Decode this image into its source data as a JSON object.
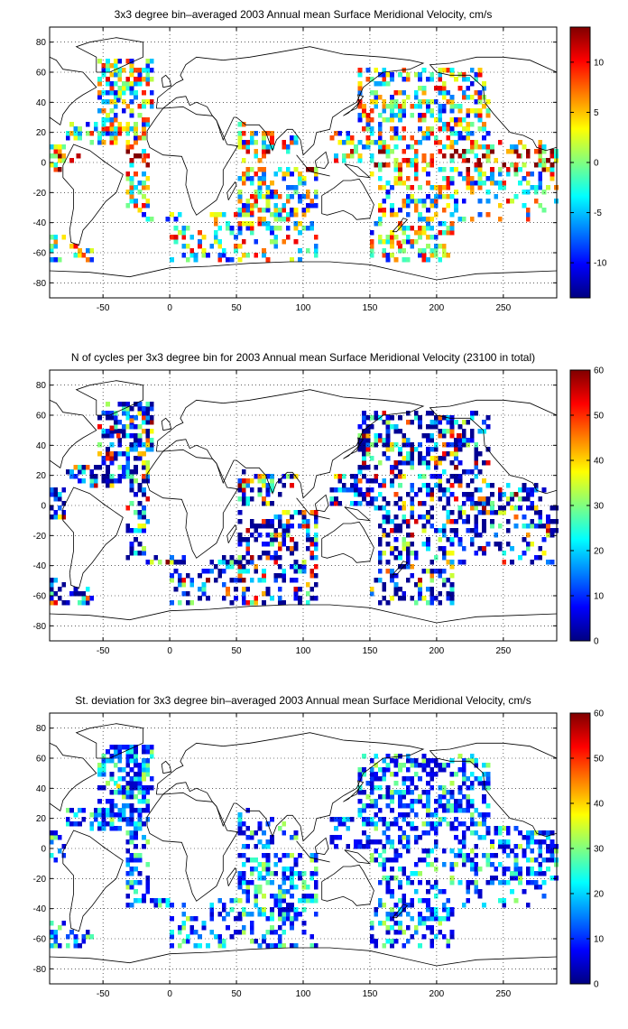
{
  "chart_data": [
    {
      "type": "heatmap",
      "title": "3x3 degree bin–averaged 2003 Annual mean Surface Meridional Velocity, cm/s",
      "xlim": [
        -90,
        290
      ],
      "ylim": [
        -90,
        90
      ],
      "x_ticks": [
        "-50",
        "0",
        "50",
        "100",
        "150",
        "200",
        "250"
      ],
      "y_ticks": [
        "80",
        "60",
        "40",
        "20",
        "0",
        "-20",
        "-40",
        "-60",
        "-80"
      ],
      "colorbar": {
        "min": -13.5,
        "max": 13.5,
        "ticks": [
          "10",
          "5",
          "0",
          "-5",
          "-10"
        ]
      },
      "grid": true,
      "cell_size_deg": 3,
      "seed": 11,
      "mode": "signed",
      "cells": [
        {
          "lon": -75,
          "lat": 0,
          "value": 11
        },
        {
          "lon": -70,
          "lat": 3,
          "value": 12
        },
        {
          "lon": -30,
          "lat": 0,
          "value": 12
        },
        {
          "lon": -20,
          "lat": 3,
          "value": 9
        },
        {
          "lon": 120,
          "lat": 15,
          "value": 8
        },
        {
          "lon": 230,
          "lat": 0,
          "value": 13
        },
        {
          "lon": 260,
          "lat": 3,
          "value": 12
        },
        {
          "lon": -40,
          "lat": 40,
          "value": -9
        },
        {
          "lon": 170,
          "lat": -55,
          "value": 9
        },
        {
          "lon": 60,
          "lat": -35,
          "value": 10
        }
      ]
    },
    {
      "type": "heatmap",
      "title": "N of cycles per 3x3 degree bin for 2003 Annual mean Surface Meridional Velocity (23100 in total)",
      "xlim": [
        -90,
        290
      ],
      "ylim": [
        -90,
        90
      ],
      "x_ticks": [
        "-50",
        "0",
        "50",
        "100",
        "150",
        "200",
        "250"
      ],
      "y_ticks": [
        "80",
        "60",
        "40",
        "20",
        "0",
        "-20",
        "-40",
        "-60",
        "-80"
      ],
      "colorbar": {
        "min": 0,
        "max": 60,
        "ticks": [
          "60",
          "50",
          "40",
          "30",
          "20",
          "10",
          "0"
        ]
      },
      "grid": true,
      "cell_size_deg": 3,
      "seed": 23,
      "mode": "count",
      "cells": [
        {
          "lon": -45,
          "lat": 50,
          "value": 55
        },
        {
          "lon": -40,
          "lat": 45,
          "value": 50
        },
        {
          "lon": -30,
          "lat": 55,
          "value": 45
        },
        {
          "lon": 215,
          "lat": 45,
          "value": 55
        },
        {
          "lon": 60,
          "lat": 15,
          "value": 40
        }
      ]
    },
    {
      "type": "heatmap",
      "title": "St. deviation for 3x3 degree bin–averaged 2003 Annual mean Surface Meridional Velocity, cm/s",
      "xlim": [
        -90,
        290
      ],
      "ylim": [
        -90,
        90
      ],
      "x_ticks": [
        "-50",
        "0",
        "50",
        "100",
        "150",
        "200",
        "250"
      ],
      "y_ticks": [
        "80",
        "60",
        "40",
        "20",
        "0",
        "-20",
        "-40",
        "-60",
        "-80"
      ],
      "colorbar": {
        "min": 0,
        "max": 60,
        "ticks": [
          "60",
          "50",
          "40",
          "30",
          "20",
          "10",
          "0"
        ]
      },
      "grid": true,
      "cell_size_deg": 3,
      "seed": 37,
      "mode": "std",
      "cells": [
        {
          "lon": -40,
          "lat": 40,
          "value": 40
        },
        {
          "lon": 240,
          "lat": 0,
          "value": 35
        },
        {
          "lon": 150,
          "lat": 30,
          "value": 30
        }
      ]
    }
  ]
}
